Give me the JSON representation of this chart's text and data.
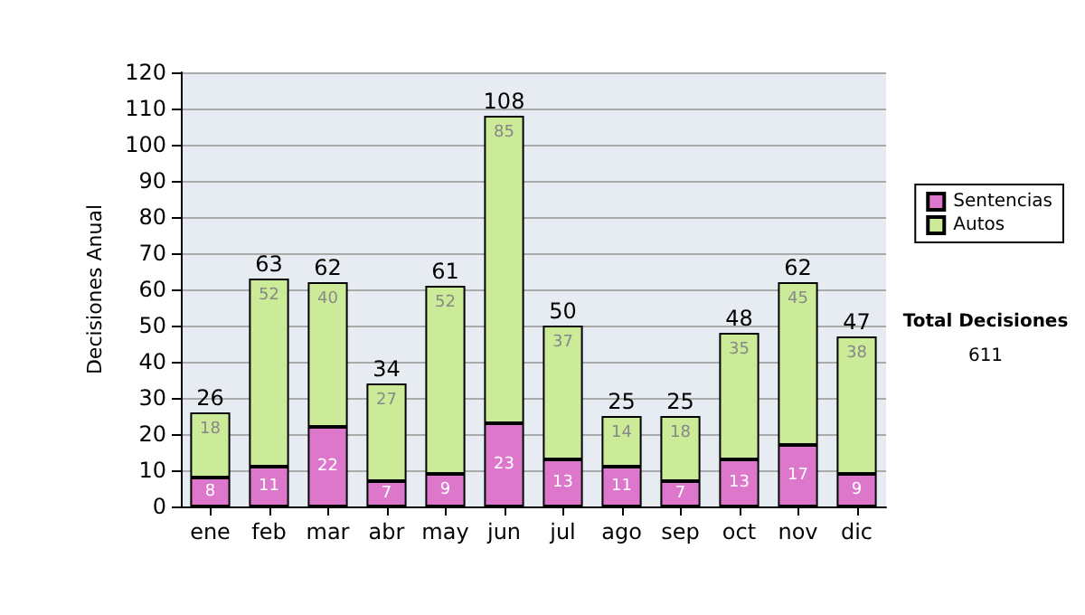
{
  "chart_data": {
    "type": "bar",
    "ylabel": "Decisiones Anual",
    "categories": [
      "ene",
      "feb",
      "mar",
      "abr",
      "may",
      "jun",
      "jul",
      "ago",
      "sep",
      "oct",
      "nov",
      "dic"
    ],
    "series": [
      {
        "name": "Sentencias",
        "color": "#dd77cc",
        "values": [
          8,
          11,
          22,
          7,
          9,
          23,
          13,
          11,
          7,
          13,
          17,
          9
        ]
      },
      {
        "name": "Autos",
        "color": "#cceb99",
        "values": [
          18,
          52,
          40,
          27,
          52,
          85,
          37,
          14,
          18,
          35,
          45,
          38
        ]
      }
    ],
    "stacked": true,
    "data_labels": true,
    "totals": [
      "26",
      "63",
      "62",
      "34",
      "61",
      "108",
      "50",
      "25",
      "25",
      "48",
      "62",
      "47"
    ],
    "ylim": [
      0,
      120
    ],
    "yticks": [
      0,
      10,
      20,
      30,
      40,
      50,
      60,
      70,
      80,
      90,
      100,
      110,
      120
    ],
    "grid": "y",
    "legend": "right",
    "annotations": [
      "Total Decisiones",
      "611"
    ]
  }
}
